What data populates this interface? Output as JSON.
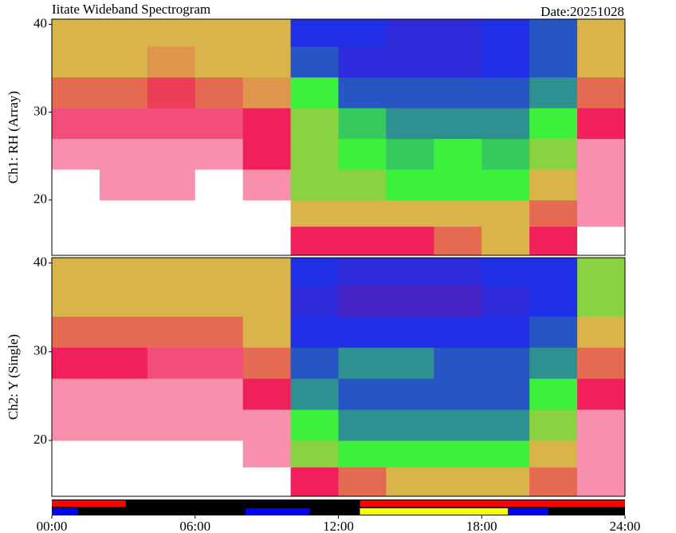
{
  "header": {
    "title": "Iitate Wideband Spectrogram",
    "date": "Date:20251028"
  },
  "chart_data": [
    {
      "type": "heatmap",
      "ylabel": "Ch1: RH (Array)",
      "xlim": [
        0,
        24
      ],
      "ylim": [
        13.7,
        40.6
      ],
      "yticks": [
        20,
        30,
        40
      ],
      "x_bins": [
        0,
        2,
        4,
        6,
        8,
        10,
        12,
        14,
        16,
        18,
        20,
        22,
        24
      ],
      "y_bins": [
        13.7,
        17,
        20,
        23.5,
        27,
        30.5,
        34,
        37.5,
        40.6
      ],
      "zlim": [
        0,
        5
      ],
      "colorscale": [
        "#6a1aa8",
        "#1f2fe6",
        "#3cf03c",
        "#d9b44a",
        "#f0205a",
        "#ffffff"
      ],
      "z": [
        [
          5,
          5,
          5,
          5,
          5,
          4,
          4,
          4,
          3.5,
          3,
          4,
          5
        ],
        [
          5,
          5,
          5,
          5,
          5,
          3,
          3,
          3,
          3,
          3,
          3.5,
          4.5
        ],
        [
          5,
          4.5,
          4.5,
          5,
          4.5,
          2.5,
          2.5,
          2,
          2,
          2,
          3,
          4.5
        ],
        [
          4.5,
          4.5,
          4.5,
          4.5,
          4,
          2.5,
          2,
          1.8,
          2,
          1.8,
          2.5,
          4.5
        ],
        [
          4.2,
          4.2,
          4.2,
          4.2,
          4,
          2.5,
          1.8,
          1.5,
          1.5,
          1.5,
          2,
          4
        ],
        [
          3.5,
          3.5,
          3.8,
          3.5,
          3.2,
          2,
          1.2,
          1.2,
          1.2,
          1.2,
          1.5,
          3.5
        ],
        [
          3,
          3,
          3.2,
          3,
          3,
          1.2,
          0.8,
          0.8,
          0.8,
          1,
          1.2,
          3
        ],
        [
          3,
          3,
          3,
          3,
          3,
          1,
          1,
          0.8,
          0.8,
          1,
          1.2,
          3
        ]
      ]
    },
    {
      "type": "heatmap",
      "ylabel": "Ch2: Y (Single)",
      "xlim": [
        0,
        24
      ],
      "ylim": [
        13.7,
        40.6
      ],
      "yticks": [
        20,
        30,
        40
      ],
      "x_bins": [
        0,
        2,
        4,
        6,
        8,
        10,
        12,
        14,
        16,
        18,
        20,
        22,
        24
      ],
      "y_bins": [
        13.7,
        17,
        20,
        23.5,
        27,
        30.5,
        34,
        37.5,
        40.6
      ],
      "zlim": [
        0,
        5
      ],
      "colorscale": [
        "#6a1aa8",
        "#1f2fe6",
        "#3cf03c",
        "#d9b44a",
        "#f0205a",
        "#ffffff"
      ],
      "z": [
        [
          5,
          5,
          5,
          5,
          5,
          4,
          3.5,
          3,
          3,
          3,
          3.5,
          4.5
        ],
        [
          5,
          5,
          5,
          5,
          4.5,
          2.5,
          2,
          2,
          2,
          2,
          3,
          4.5
        ],
        [
          4.5,
          4.5,
          4.5,
          4.5,
          4.5,
          2,
          1.5,
          1.5,
          1.5,
          1.5,
          2.5,
          4.5
        ],
        [
          4.5,
          4.5,
          4.5,
          4.5,
          4,
          1.5,
          1.2,
          1.2,
          1.2,
          1.2,
          2,
          4
        ],
        [
          4,
          4,
          4.2,
          4.2,
          3.5,
          1.2,
          1.5,
          1.5,
          1.2,
          1.2,
          1.5,
          3.5
        ],
        [
          3.5,
          3.5,
          3.5,
          3.5,
          3,
          1,
          1,
          1,
          1,
          1,
          1.2,
          3
        ],
        [
          3,
          3,
          3,
          3,
          3,
          0.8,
          0.5,
          0.5,
          0.5,
          0.8,
          1,
          2.5
        ],
        [
          3,
          3,
          3,
          3,
          3,
          1,
          0.8,
          0.8,
          0.8,
          1,
          1,
          2.5
        ]
      ]
    },
    {
      "type": "timeline",
      "xlim": [
        0,
        24
      ],
      "xticks": [
        {
          "value": 0,
          "label": "00:00"
        },
        {
          "value": 6,
          "label": "06:00"
        },
        {
          "value": 12,
          "label": "12:00"
        },
        {
          "value": 18,
          "label": "18:00"
        },
        {
          "value": 24,
          "label": "24:00"
        }
      ],
      "background": "#000000",
      "rows": [
        [
          {
            "start": 0,
            "end": 3.1,
            "color": "#ff0000"
          },
          {
            "start": 12.9,
            "end": 24,
            "color": "#ff0000"
          }
        ],
        [
          {
            "start": 0,
            "end": 1.1,
            "color": "#0000ff"
          },
          {
            "start": 8.1,
            "end": 10.8,
            "color": "#0000ff"
          },
          {
            "start": 12.9,
            "end": 19.1,
            "color": "#ffff00"
          },
          {
            "start": 19.1,
            "end": 20.8,
            "color": "#0000ff"
          }
        ]
      ]
    }
  ]
}
